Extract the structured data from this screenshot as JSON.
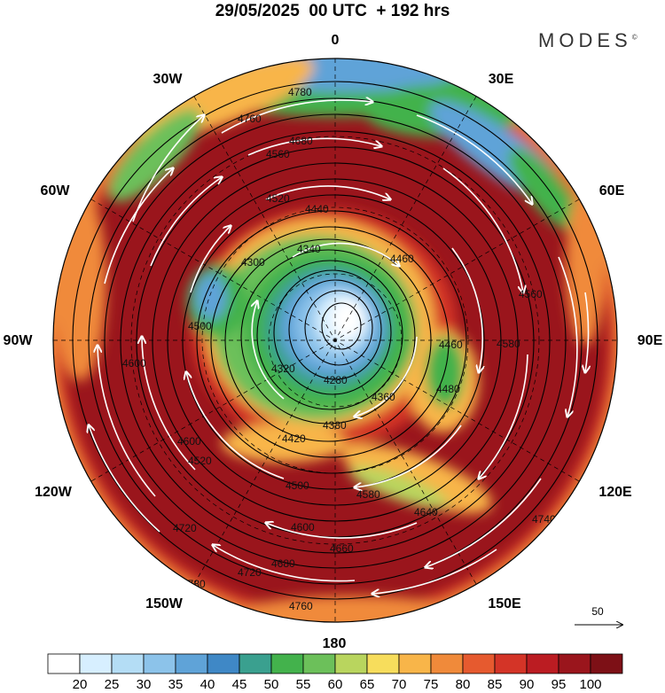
{
  "title": "29/05/2025  00 UTC  + 192 hrs",
  "brand": "MODES",
  "brand_mark": "©",
  "longitude_labels": {
    "l0": "0",
    "l30e": "30E",
    "l60e": "60E",
    "l90e": "90E",
    "l120e": "120E",
    "l150e": "150E",
    "l180": "180",
    "l150w": "150W",
    "l120w": "120W",
    "l90w": "90W",
    "l60w": "60W",
    "l30w": "30W"
  },
  "reference_vector": {
    "value": "50",
    "icon": "arrow-right-icon"
  },
  "contour_labels": [
    "4780",
    "4760",
    "4680",
    "4560",
    "4520",
    "4440",
    "4340",
    "4300",
    "4280",
    "4320",
    "4360",
    "4380",
    "4420",
    "4460",
    "4480",
    "4500",
    "4580",
    "4600",
    "4640",
    "4660",
    "4720",
    "4740",
    "4520",
    "4500",
    "4580",
    "4600",
    "4680",
    "4720",
    "4760",
    "4780",
    "4560",
    "4460",
    "4600"
  ],
  "colorbar": {
    "ticks": [
      "20",
      "25",
      "30",
      "35",
      "40",
      "45",
      "50",
      "55",
      "60",
      "65",
      "70",
      "75",
      "80",
      "85",
      "90",
      "95",
      "100"
    ],
    "colors": [
      "#ffffff",
      "#d7efff",
      "#b4ddf5",
      "#8cc3ea",
      "#5fa3d8",
      "#3f88c6",
      "#3aa08f",
      "#43b24c",
      "#6cc05a",
      "#b9d55e",
      "#f7dd5c",
      "#f8b549",
      "#f08a3a",
      "#e65a2f",
      "#d43427",
      "#bb1c22",
      "#9a151c",
      "#7d1016"
    ]
  }
}
